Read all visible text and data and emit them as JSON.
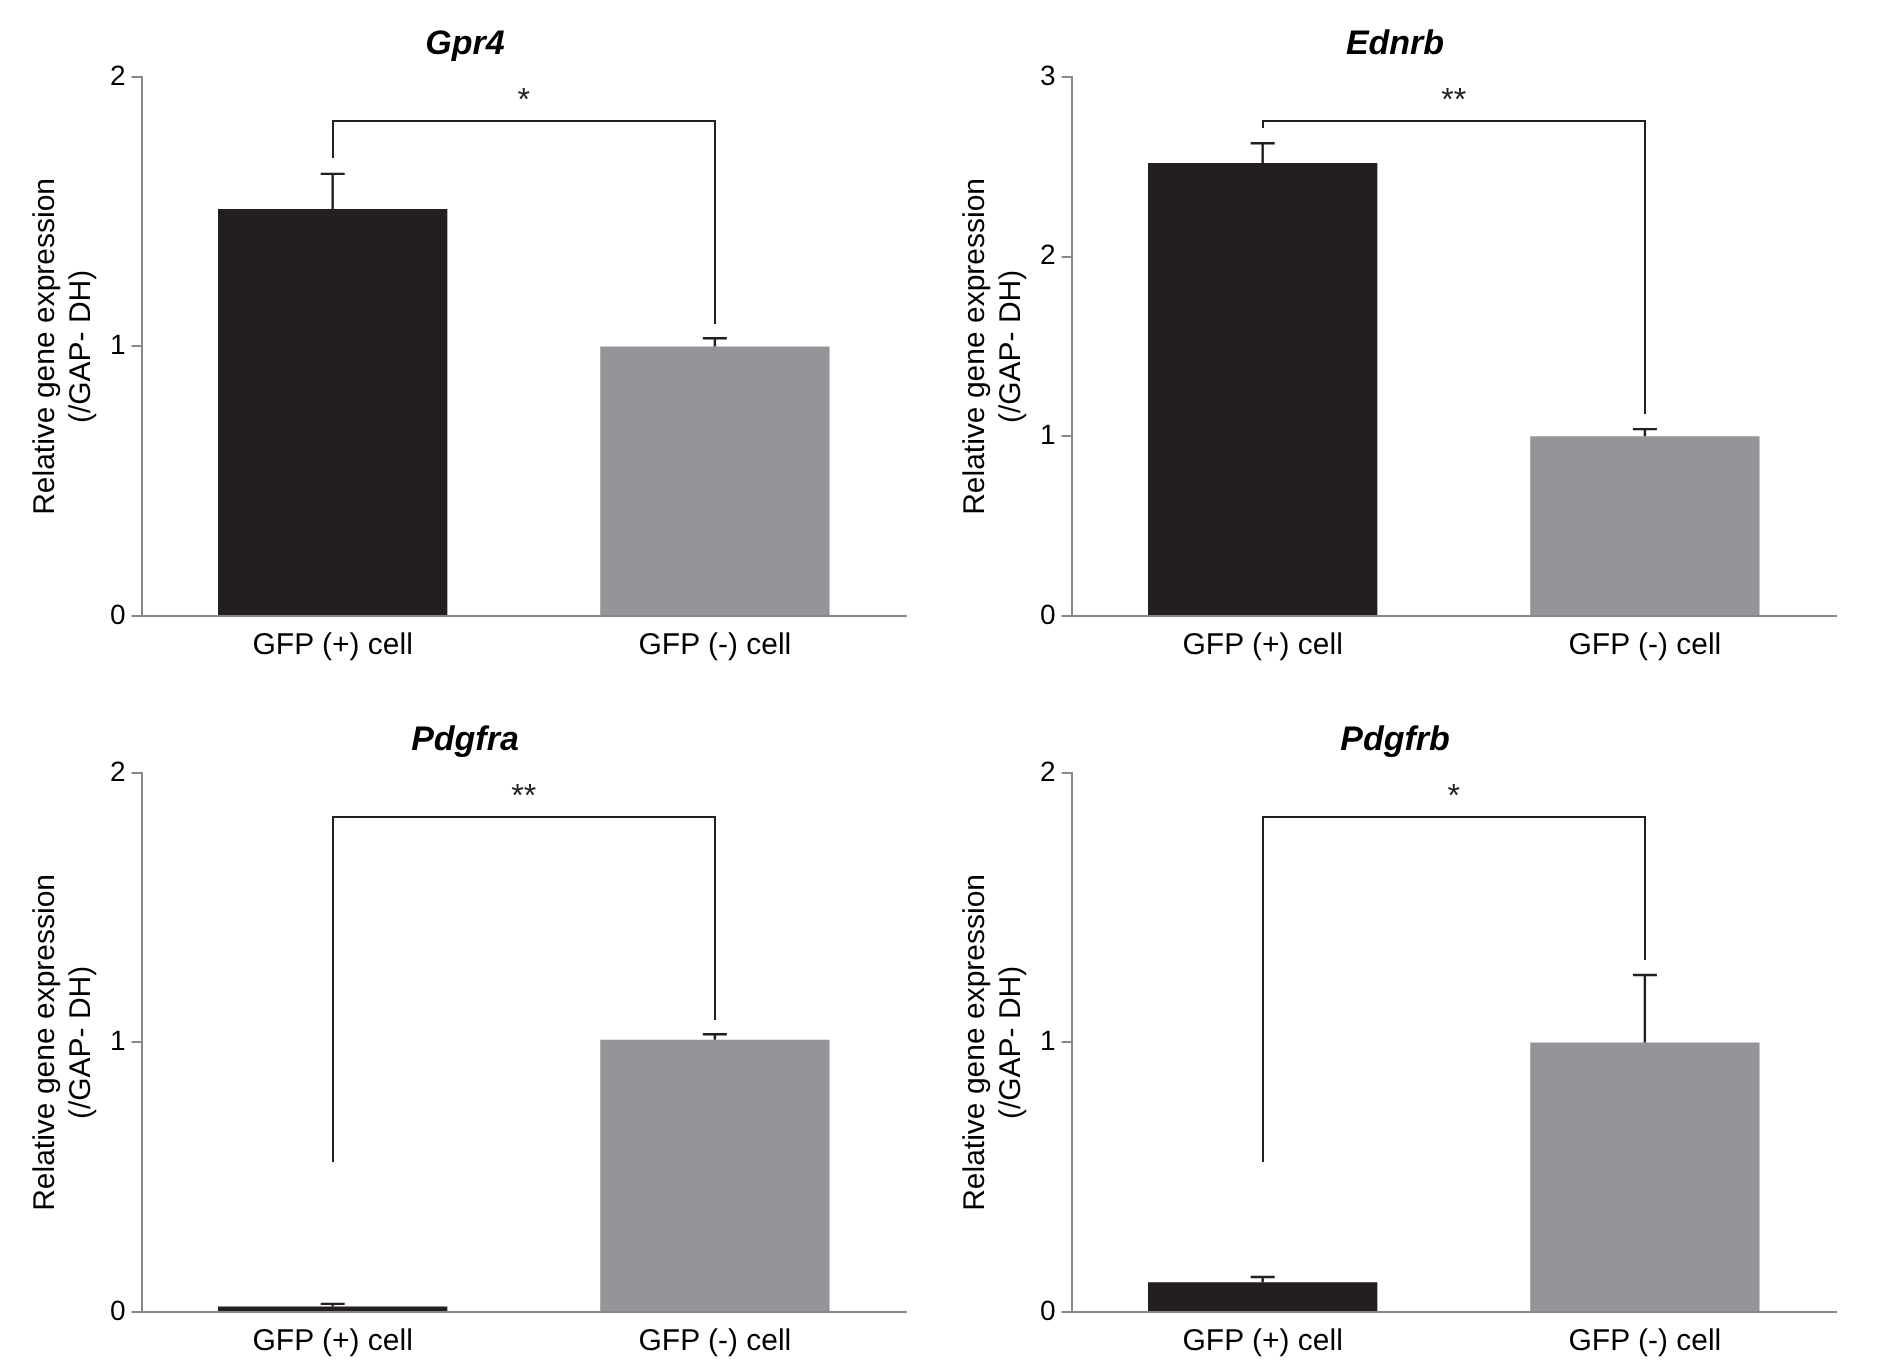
{
  "chart_data": [
    {
      "type": "bar",
      "title": "Gpr4",
      "ylabel": "Relative gene expression\n(/GAP- DH)",
      "categories": [
        "GFP (+) cell",
        "GFP (-) cell"
      ],
      "values": [
        1.51,
        1.0
      ],
      "errors": [
        0.13,
        0.03
      ],
      "colors": [
        "#231f20",
        "#939598"
      ],
      "ylim": [
        0,
        2
      ],
      "yticks": [
        0,
        1,
        2
      ],
      "grid": false,
      "legend": false,
      "annotations": [
        "*"
      ]
    },
    {
      "type": "bar",
      "title": "Ednrb",
      "ylabel": "Relative gene expression\n(/GAP- DH)",
      "categories": [
        "GFP (+) cell",
        "GFP (-) cell"
      ],
      "values": [
        2.52,
        1.0
      ],
      "errors": [
        0.11,
        0.04
      ],
      "colors": [
        "#231f20",
        "#939598"
      ],
      "ylim": [
        0,
        3
      ],
      "yticks": [
        0,
        1,
        2,
        3
      ],
      "grid": false,
      "legend": false,
      "annotations": [
        "**"
      ]
    },
    {
      "type": "bar",
      "title": "Pdgfra",
      "ylabel": "Relative gene expression\n(/GAP- DH)",
      "categories": [
        "GFP (+) cell",
        "GFP (-) cell"
      ],
      "values": [
        0.02,
        1.01
      ],
      "errors": [
        0.01,
        0.02
      ],
      "colors": [
        "#231f20",
        "#939598"
      ],
      "ylim": [
        0,
        2
      ],
      "yticks": [
        0,
        1,
        2
      ],
      "grid": false,
      "legend": false,
      "annotations": [
        "**"
      ]
    },
    {
      "type": "bar",
      "title": "Pdgfrb",
      "ylabel": "Relative gene expression\n(/GAP- DH)",
      "categories": [
        "GFP (+) cell",
        "GFP (-) cell"
      ],
      "values": [
        0.11,
        1.0
      ],
      "errors": [
        0.02,
        0.25
      ],
      "colors": [
        "#231f20",
        "#939598"
      ],
      "ylim": [
        0,
        2
      ],
      "yticks": [
        0,
        1,
        2
      ],
      "grid": false,
      "legend": false,
      "annotations": [
        "*"
      ]
    }
  ]
}
